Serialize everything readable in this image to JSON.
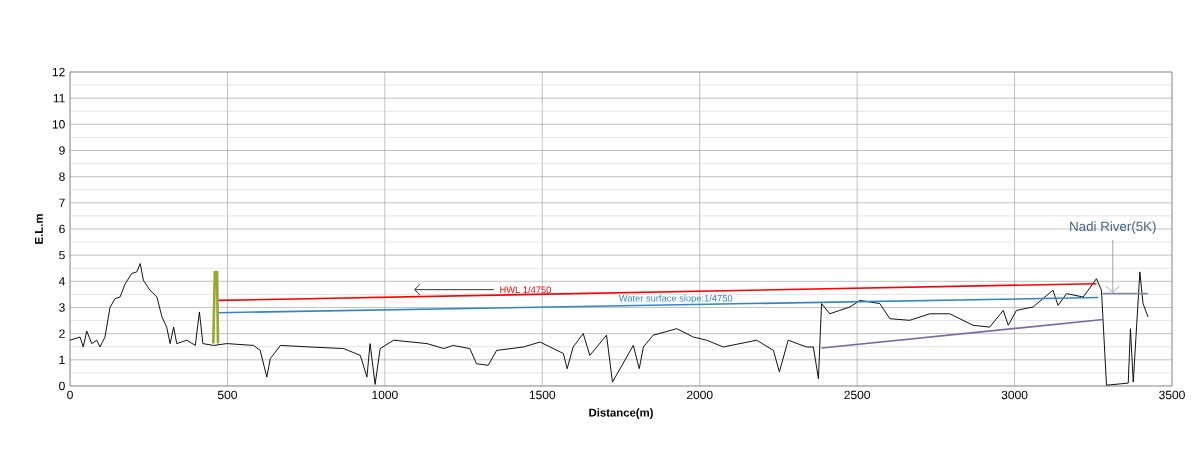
{
  "chart_data": {
    "type": "line",
    "xlabel": "Distance(m)",
    "ylabel": "E.L.m",
    "xlim": [
      0,
      3500
    ],
    "xticks": [
      0,
      500,
      1000,
      1500,
      2000,
      2500,
      3000,
      3500
    ],
    "ylim": [
      0,
      12
    ],
    "yticks": [
      0,
      1,
      2,
      3,
      4,
      5,
      6,
      7,
      8,
      9,
      10,
      11,
      12
    ],
    "grid": true,
    "marker": "none",
    "line_style": "solid",
    "series": [
      {
        "color": "#000000",
        "x": [
          0,
          32,
          42,
          53,
          69,
          85,
          95,
          111,
          127,
          143,
          159,
          175,
          196,
          212,
          223,
          233,
          254,
          276,
          292,
          307,
          318,
          329,
          339,
          371,
          398,
          411,
          422,
          456,
          498,
          583,
          604,
          625,
          636,
          668,
          763,
          869,
          922,
          943,
          953,
          969,
          985,
          1028,
          1134,
          1187,
          1217,
          1270,
          1291,
          1328,
          1355,
          1440,
          1493,
          1567,
          1579,
          1598,
          1630,
          1651,
          1704,
          1723,
          1789,
          1808,
          1821,
          1852,
          1927,
          1980,
          2022,
          2075,
          2181,
          2234,
          2253,
          2281,
          2339,
          2361,
          2377,
          2387,
          2413,
          2445,
          2477,
          2509,
          2572,
          2604,
          2667,
          2731,
          2794,
          2868,
          2921,
          2964,
          2980,
          3006,
          3059,
          3122,
          3138,
          3165,
          3218,
          3260,
          3276,
          3292,
          3361,
          3368,
          3377,
          3398,
          3408,
          3424
        ],
        "values": [
          1.75,
          1.87,
          1.49,
          2.1,
          1.62,
          1.75,
          1.49,
          1.87,
          3.0,
          3.34,
          3.4,
          3.9,
          4.3,
          4.36,
          4.68,
          4.04,
          3.66,
          3.4,
          2.64,
          2.25,
          1.62,
          2.25,
          1.62,
          1.75,
          1.55,
          2.83,
          1.62,
          1.55,
          1.62,
          1.55,
          1.36,
          0.34,
          1.04,
          1.55,
          1.49,
          1.43,
          1.17,
          0.34,
          1.62,
          0.06,
          1.43,
          1.75,
          1.62,
          1.43,
          1.55,
          1.43,
          0.85,
          0.79,
          1.36,
          1.49,
          1.68,
          1.24,
          0.66,
          1.49,
          2.0,
          1.17,
          1.94,
          0.15,
          1.55,
          0.66,
          1.49,
          1.94,
          2.19,
          1.87,
          1.75,
          1.49,
          1.75,
          1.36,
          0.54,
          1.75,
          1.49,
          1.49,
          0.28,
          3.15,
          2.76,
          2.89,
          3.02,
          3.27,
          3.15,
          2.57,
          2.51,
          2.76,
          2.76,
          2.32,
          2.25,
          2.89,
          2.32,
          2.89,
          3.02,
          3.66,
          3.08,
          3.53,
          3.4,
          4.1,
          3.66,
          0.03,
          0.11,
          2.19,
          0.15,
          4.36,
          3.15,
          2.64
        ]
      },
      {
        "name": "HWL 1/4750",
        "color": "#ff0000",
        "x": [
          470,
          3260
        ],
        "values": [
          3.27,
          3.91
        ]
      },
      {
        "name": "Water surface slope:1/4750",
        "color": "#2e86c8",
        "x": [
          470,
          3266
        ],
        "values": [
          2.8,
          3.38
        ]
      },
      {
        "color": "#7f8fa0",
        "x": [
          3280,
          3424
        ],
        "values": [
          3.53,
          3.53
        ]
      },
      {
        "color": "#7a68a6",
        "x": [
          2387,
          3282
        ],
        "values": [
          1.45,
          2.54
        ]
      },
      {
        "color": "#9aa832",
        "x": [
          455,
          460,
          467,
          470
        ],
        "values": [
          1.62,
          4.35,
          4.35,
          1.62
        ]
      }
    ],
    "annotations": [
      {
        "text": "Nadi River(5K)",
        "x": 3312,
        "y": 3.55
      }
    ]
  }
}
